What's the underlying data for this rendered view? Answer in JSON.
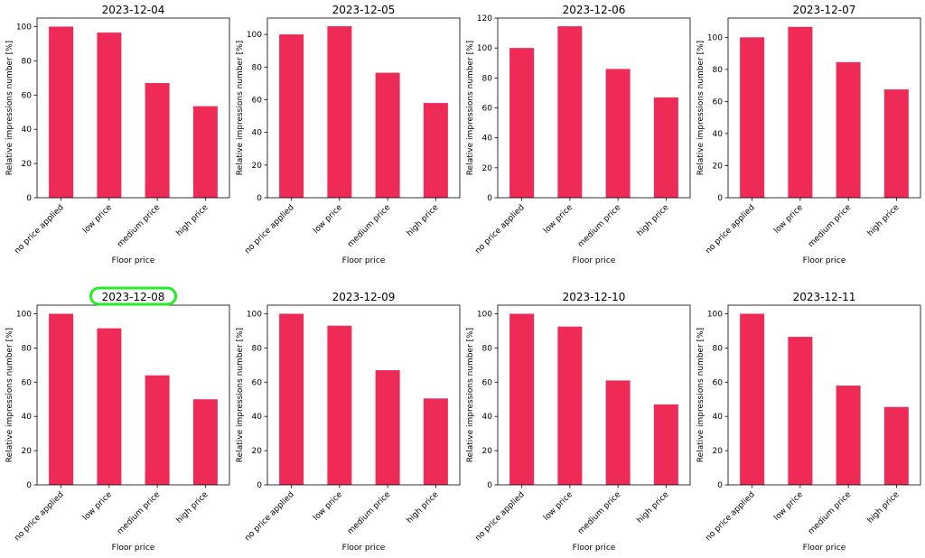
{
  "chart_data": [
    {
      "type": "bar",
      "title": "2023-12-04",
      "categories": [
        "no price applied",
        "low price",
        "medium price",
        "high price"
      ],
      "values": [
        100,
        96.5,
        67,
        53.5
      ],
      "xlabel": "Floor price",
      "ylabel": "Relative impressions number [%]",
      "ylim": [
        0,
        105
      ],
      "yticks": [
        0,
        20,
        40,
        60,
        80,
        100
      ],
      "color": "#ee2a56",
      "grid": false,
      "highlight": false
    },
    {
      "type": "bar",
      "title": "2023-12-05",
      "categories": [
        "no price applied",
        "low price",
        "medium price",
        "high price"
      ],
      "values": [
        100,
        105,
        76.5,
        58
      ],
      "xlabel": "Floor price",
      "ylabel": "Relative impressions number [%]",
      "ylim": [
        0,
        110
      ],
      "yticks": [
        0,
        20,
        40,
        60,
        80,
        100
      ],
      "color": "#ee2a56",
      "grid": false,
      "highlight": false
    },
    {
      "type": "bar",
      "title": "2023-12-06",
      "categories": [
        "no price applied",
        "low price",
        "medium price",
        "high price"
      ],
      "values": [
        100,
        114.5,
        86,
        67
      ],
      "xlabel": "Floor price",
      "ylabel": "Relative impressions number [%]",
      "ylim": [
        0,
        120
      ],
      "yticks": [
        0,
        20,
        40,
        60,
        80,
        100,
        120
      ],
      "color": "#ee2a56",
      "grid": false,
      "highlight": false
    },
    {
      "type": "bar",
      "title": "2023-12-07",
      "categories": [
        "no price applied",
        "low price",
        "medium price",
        "high price"
      ],
      "values": [
        100,
        106.5,
        84.5,
        67.5
      ],
      "xlabel": "Floor price",
      "ylabel": "Relative impressions number [%]",
      "ylim": [
        0,
        112
      ],
      "yticks": [
        0,
        20,
        40,
        60,
        80,
        100
      ],
      "color": "#ee2a56",
      "grid": false,
      "highlight": false
    },
    {
      "type": "bar",
      "title": "2023-12-08",
      "categories": [
        "no price applied",
        "low price",
        "medium price",
        "high price"
      ],
      "values": [
        100,
        91.5,
        64,
        50
      ],
      "xlabel": "Floor price",
      "ylabel": "Relative impressions number [%]",
      "ylim": [
        0,
        105
      ],
      "yticks": [
        0,
        20,
        40,
        60,
        80,
        100
      ],
      "color": "#ee2a56",
      "grid": false,
      "highlight": true
    },
    {
      "type": "bar",
      "title": "2023-12-09",
      "categories": [
        "no price applied",
        "low price",
        "medium price",
        "high price"
      ],
      "values": [
        100,
        93,
        67,
        50.5
      ],
      "xlabel": "Floor price",
      "ylabel": "Relative impressions number [%]",
      "ylim": [
        0,
        105
      ],
      "yticks": [
        0,
        20,
        40,
        60,
        80,
        100
      ],
      "color": "#ee2a56",
      "grid": false,
      "highlight": false
    },
    {
      "type": "bar",
      "title": "2023-12-10",
      "categories": [
        "no price applied",
        "low price",
        "medium price",
        "high price"
      ],
      "values": [
        100,
        92.5,
        61,
        47
      ],
      "xlabel": "Floor price",
      "ylabel": "Relative impressions number [%]",
      "ylim": [
        0,
        105
      ],
      "yticks": [
        0,
        20,
        40,
        60,
        80,
        100
      ],
      "color": "#ee2a56",
      "grid": false,
      "highlight": false
    },
    {
      "type": "bar",
      "title": "2023-12-11",
      "categories": [
        "no price applied",
        "low price",
        "medium price",
        "high price"
      ],
      "values": [
        100,
        86.5,
        58,
        45.5
      ],
      "xlabel": "Floor price",
      "ylabel": "Relative impressions number [%]",
      "ylim": [
        0,
        105
      ],
      "yticks": [
        0,
        20,
        40,
        60,
        80,
        100
      ],
      "color": "#ee2a56",
      "grid": false,
      "highlight": false
    }
  ],
  "highlight_color": "#22ee22"
}
